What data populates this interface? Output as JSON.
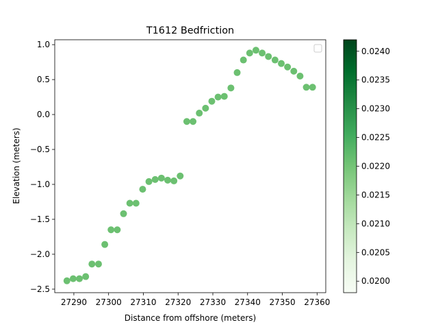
{
  "chart_data": {
    "type": "scatter",
    "title": "T1612 Bedfriction",
    "xlabel": "Distance from offshore (meters)",
    "ylabel": "Elevation (meters)",
    "xlim": [
      27284.5,
      27362.5
    ],
    "ylim": [
      -2.55,
      1.07
    ],
    "xticks": [
      27290,
      27300,
      27310,
      27320,
      27330,
      27340,
      27350,
      27360
    ],
    "yticks": [
      -2.5,
      -2.0,
      -1.5,
      -1.0,
      -0.5,
      0.0,
      0.5,
      1.0
    ],
    "grid": false,
    "legend": "top-right (empty)",
    "point_color": "#6cc071",
    "colorbar": {
      "cmap": "Greens",
      "range": [
        0.0198,
        0.0242
      ],
      "ticks": [
        0.02,
        0.0205,
        0.021,
        0.0215,
        0.022,
        0.0225,
        0.023,
        0.0235,
        0.024
      ],
      "tick_labels": [
        "0.0200",
        "0.0205",
        "0.0210",
        "0.0215",
        "0.0220",
        "0.0225",
        "0.0230",
        "0.0235",
        "0.0240"
      ]
    },
    "series": [
      {
        "x": [
          27288.0,
          27289.8,
          27291.6,
          27293.4,
          27295.2,
          27297.1,
          27298.9,
          27300.7,
          27302.5,
          27304.3,
          27306.1,
          27307.9,
          27309.8,
          27311.6,
          27313.4,
          27315.2,
          27317.0,
          27318.8,
          27320.6,
          27322.5,
          27324.3,
          27326.1,
          27327.9,
          27329.7,
          27331.5,
          27333.3,
          27335.2,
          27337.0,
          27338.8,
          27340.6,
          27342.4,
          27344.2,
          27346.0,
          27347.9,
          27349.7,
          27351.5,
          27353.3,
          27355.1,
          27356.9,
          27358.7
        ],
        "y": [
          -2.38,
          -2.35,
          -2.35,
          -2.32,
          -2.14,
          -2.14,
          -1.86,
          -1.65,
          -1.65,
          -1.42,
          -1.27,
          -1.27,
          -1.07,
          -0.96,
          -0.93,
          -0.91,
          -0.94,
          -0.95,
          -0.88,
          -0.1,
          -0.1,
          0.02,
          0.09,
          0.19,
          0.25,
          0.26,
          0.38,
          0.6,
          0.78,
          0.88,
          0.92,
          0.88,
          0.83,
          0.78,
          0.73,
          0.68,
          0.62,
          0.55,
          0.39,
          0.39
        ]
      }
    ]
  }
}
